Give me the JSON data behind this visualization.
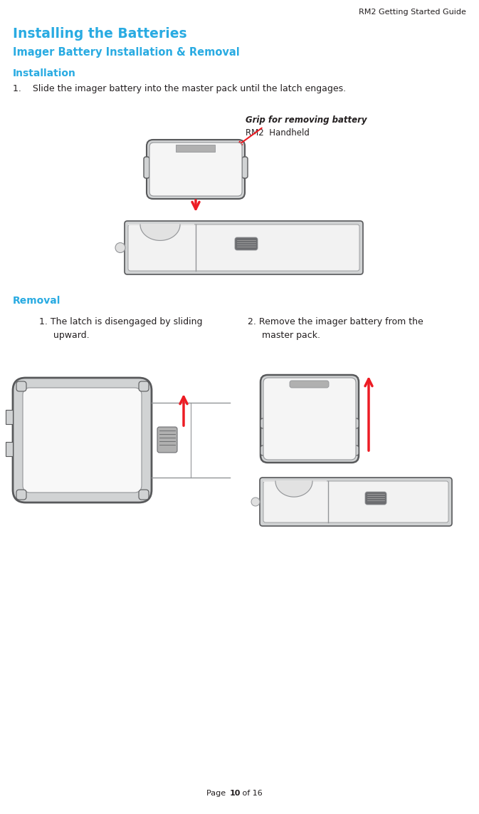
{
  "page_title": "RM2 Getting Started Guide",
  "main_title": "Installing the Batteries",
  "subtitle": "Imager Battery Installation & Removal",
  "section1": "Installation",
  "step1": "1.    Slide the imager battery into the master pack until the latch engages.",
  "section2": "Removal",
  "removal_step1_line1": "1. The latch is disengaged by sliding",
  "removal_step1_line2": "upward.",
  "removal_step2_line1": "2. Remove the imager battery from the",
  "removal_step2_line2": "master pack.",
  "callout_italic": "Grip for removing battery",
  "callout_normal": "RM2  Handheld",
  "page_footer": "Page ",
  "page_num": "10",
  "page_footer2": " of 16",
  "bg_color": "#ffffff",
  "text_color": "#231f20",
  "blue_color": "#29abe2",
  "red_color": "#ed1c24",
  "gray_light": "#f0f0f0",
  "gray_device": "#d1d3d4",
  "gray_outline": "#939598",
  "gray_mid": "#b0b0b0",
  "gray_dark": "#6d6e71",
  "gray_very_dark": "#58595b"
}
